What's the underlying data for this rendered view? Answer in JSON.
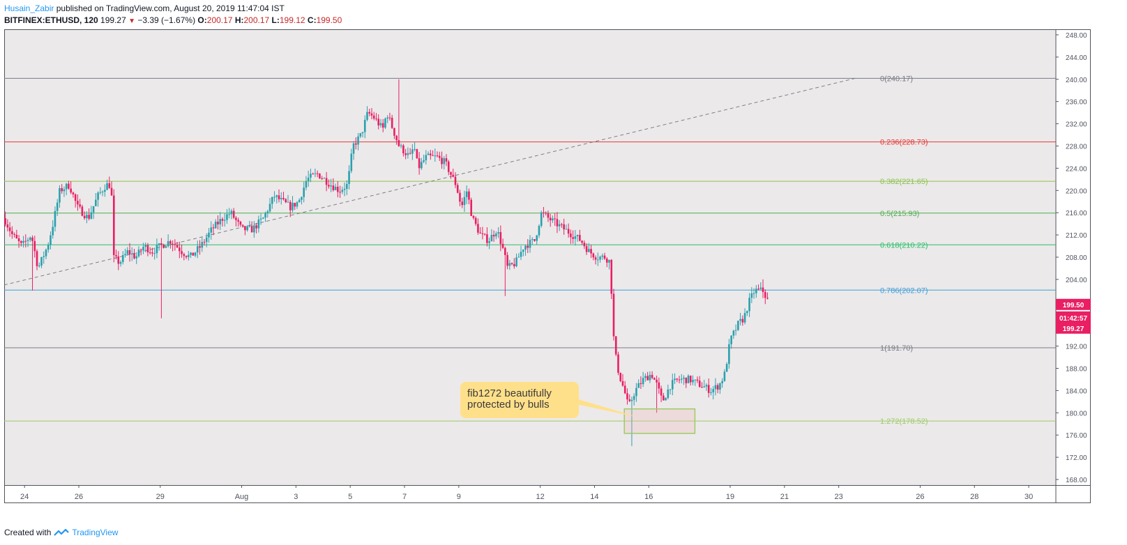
{
  "header": {
    "author": "Husain_Zabir",
    "published_text": "published on TradingView.com, August 20, 2019 11:47:04 IST",
    "symbol": "BITFINEX:ETHUSD, 120",
    "price": "199.27",
    "change": "−3.39 (−1.67%)",
    "o_label": "O:",
    "o_value": "200.17",
    "h_label": "H:",
    "h_value": "200.17",
    "l_label": "L:",
    "l_value": "199.12",
    "c_label": "C:",
    "c_value": "199.50"
  },
  "footer": {
    "created_with": "Created with",
    "brand": "TradingView"
  },
  "chart_data": {
    "type": "candlestick",
    "symbol": "BITFINEX:ETHUSD",
    "interval": "120",
    "y_axis": {
      "range": [
        167,
        249
      ],
      "ticks": [
        "168.00",
        "172.00",
        "176.00",
        "180.00",
        "184.00",
        "188.00",
        "192.00",
        "196.00",
        "200.00",
        "204.00",
        "208.00",
        "212.00",
        "216.00",
        "220.00",
        "224.00",
        "228.00",
        "232.00",
        "236.00",
        "240.00",
        "244.00",
        "248.00"
      ]
    },
    "x_axis": {
      "labels": [
        {
          "t": 0.5,
          "label": "24"
        },
        {
          "t": 2.5,
          "label": "26"
        },
        {
          "t": 5.5,
          "label": "29"
        },
        {
          "t": 8.5,
          "label": "Aug"
        },
        {
          "t": 10.5,
          "label": "3"
        },
        {
          "t": 12.5,
          "label": "5"
        },
        {
          "t": 14.5,
          "label": "7"
        },
        {
          "t": 16.5,
          "label": "9"
        },
        {
          "t": 19.5,
          "label": "12"
        },
        {
          "t": 21.5,
          "label": "14"
        },
        {
          "t": 23.5,
          "label": "16"
        },
        {
          "t": 26.5,
          "label": "19"
        },
        {
          "t": 28.5,
          "label": "21"
        },
        {
          "t": 30.5,
          "label": "23"
        },
        {
          "t": 33.5,
          "label": "26"
        },
        {
          "t": 35.5,
          "label": "28"
        },
        {
          "t": 37.5,
          "label": "30"
        }
      ],
      "range": [
        -0.25,
        38.5
      ]
    },
    "price_anchors": [
      {
        "t": -0.25,
        "p": 215
      },
      {
        "t": 0.05,
        "p": 212
      },
      {
        "t": 0.4,
        "p": 210
      },
      {
        "t": 0.75,
        "p": 212
      },
      {
        "t": 1.0,
        "p": 206
      },
      {
        "t": 1.35,
        "p": 210
      },
      {
        "t": 1.55,
        "p": 214
      },
      {
        "t": 1.8,
        "p": 220
      },
      {
        "t": 2.15,
        "p": 221
      },
      {
        "t": 2.45,
        "p": 217
      },
      {
        "t": 2.85,
        "p": 215
      },
      {
        "t": 3.2,
        "p": 219
      },
      {
        "t": 3.5,
        "p": 221
      },
      {
        "t": 3.7,
        "p": 221
      },
      {
        "t": 3.75,
        "p": 208
      },
      {
        "t": 4.0,
        "p": 207
      },
      {
        "t": 4.3,
        "p": 209
      },
      {
        "t": 4.6,
        "p": 208
      },
      {
        "t": 4.9,
        "p": 210
      },
      {
        "t": 5.2,
        "p": 209
      },
      {
        "t": 5.5,
        "p": 210
      },
      {
        "t": 5.9,
        "p": 211
      },
      {
        "t": 6.3,
        "p": 209
      },
      {
        "t": 6.6,
        "p": 208
      },
      {
        "t": 7.0,
        "p": 210
      },
      {
        "t": 7.4,
        "p": 213
      },
      {
        "t": 7.8,
        "p": 215
      },
      {
        "t": 8.1,
        "p": 216
      },
      {
        "t": 8.5,
        "p": 213
      },
      {
        "t": 8.9,
        "p": 213
      },
      {
        "t": 9.3,
        "p": 215
      },
      {
        "t": 9.7,
        "p": 219
      },
      {
        "t": 10.3,
        "p": 217
      },
      {
        "t": 10.6,
        "p": 218
      },
      {
        "t": 10.9,
        "p": 222
      },
      {
        "t": 11.3,
        "p": 223
      },
      {
        "t": 11.8,
        "p": 221
      },
      {
        "t": 12.1,
        "p": 220
      },
      {
        "t": 12.4,
        "p": 221
      },
      {
        "t": 12.6,
        "p": 228
      },
      {
        "t": 12.9,
        "p": 230
      },
      {
        "t": 13.15,
        "p": 234
      },
      {
        "t": 13.4,
        "p": 233
      },
      {
        "t": 13.7,
        "p": 231
      },
      {
        "t": 13.85,
        "p": 234
      },
      {
        "t": 14.0,
        "p": 232
      },
      {
        "t": 14.3,
        "p": 228
      },
      {
        "t": 14.5,
        "p": 227
      },
      {
        "t": 14.7,
        "p": 226
      },
      {
        "t": 14.85,
        "p": 228
      },
      {
        "t": 15.0,
        "p": 224
      },
      {
        "t": 15.3,
        "p": 226
      },
      {
        "t": 15.7,
        "p": 226
      },
      {
        "t": 16.0,
        "p": 225
      },
      {
        "t": 16.4,
        "p": 221
      },
      {
        "t": 16.6,
        "p": 217
      },
      {
        "t": 16.8,
        "p": 220
      },
      {
        "t": 17.0,
        "p": 215
      },
      {
        "t": 17.3,
        "p": 212
      },
      {
        "t": 17.6,
        "p": 211
      },
      {
        "t": 17.9,
        "p": 213
      },
      {
        "t": 18.1,
        "p": 210
      },
      {
        "t": 18.3,
        "p": 206
      },
      {
        "t": 18.6,
        "p": 207
      },
      {
        "t": 18.9,
        "p": 210
      },
      {
        "t": 19.3,
        "p": 211
      },
      {
        "t": 19.55,
        "p": 216
      },
      {
        "t": 19.8,
        "p": 215
      },
      {
        "t": 20.1,
        "p": 214
      },
      {
        "t": 20.4,
        "p": 213
      },
      {
        "t": 20.7,
        "p": 212
      },
      {
        "t": 21.0,
        "p": 211
      },
      {
        "t": 21.3,
        "p": 209
      },
      {
        "t": 21.6,
        "p": 208
      },
      {
        "t": 21.9,
        "p": 208
      },
      {
        "t": 22.1,
        "p": 207
      },
      {
        "t": 22.15,
        "p": 197
      },
      {
        "t": 22.25,
        "p": 191
      },
      {
        "t": 22.4,
        "p": 187
      },
      {
        "t": 22.6,
        "p": 184
      },
      {
        "t": 22.75,
        "p": 181
      },
      {
        "t": 23.0,
        "p": 184
      },
      {
        "t": 23.3,
        "p": 186
      },
      {
        "t": 23.6,
        "p": 187
      },
      {
        "t": 23.8,
        "p": 185
      },
      {
        "t": 24.0,
        "p": 182
      },
      {
        "t": 24.3,
        "p": 185
      },
      {
        "t": 24.6,
        "p": 186
      },
      {
        "t": 25.0,
        "p": 186
      },
      {
        "t": 25.4,
        "p": 185
      },
      {
        "t": 25.8,
        "p": 184
      },
      {
        "t": 26.1,
        "p": 185
      },
      {
        "t": 26.3,
        "p": 187
      },
      {
        "t": 26.5,
        "p": 193
      },
      {
        "t": 26.8,
        "p": 196
      },
      {
        "t": 27.0,
        "p": 197
      },
      {
        "t": 27.2,
        "p": 200
      },
      {
        "t": 27.4,
        "p": 202
      },
      {
        "t": 27.7,
        "p": 202
      },
      {
        "t": 27.95,
        "p": 199.5
      }
    ],
    "extremes": [
      {
        "t": 0.8,
        "p": 202
      },
      {
        "t": 5.55,
        "p": 197
      },
      {
        "t": 14.3,
        "p": 240
      },
      {
        "t": 18.2,
        "p": 201
      },
      {
        "t": 22.85,
        "p": 174
      },
      {
        "t": 23.8,
        "p": 180
      },
      {
        "t": 27.7,
        "p": 204
      }
    ],
    "fib_levels": [
      {
        "ratio": "0",
        "price": 240.17,
        "label": "0(240.17)",
        "color": "#787b86"
      },
      {
        "ratio": "0.236",
        "price": 228.73,
        "label": "0.236(228.73)",
        "color": "#e53935"
      },
      {
        "ratio": "0.382",
        "price": 221.65,
        "label": "0.382(221.65)",
        "color": "#8bc34a"
      },
      {
        "ratio": "0.5",
        "price": 215.93,
        "label": "0.5(215.93)",
        "color": "#4caf50"
      },
      {
        "ratio": "0.618",
        "price": 210.22,
        "label": "0.618(210.22)",
        "color": "#26c06b"
      },
      {
        "ratio": "0.786",
        "price": 202.07,
        "label": "0.786(202.07)",
        "color": "#3c9fd8"
      },
      {
        "ratio": "1",
        "price": 191.7,
        "label": "1(191.70)",
        "color": "#787b86"
      },
      {
        "ratio": "1.272",
        "price": 178.52,
        "label": "1.272(178.52)",
        "color": "#9ccc65"
      }
    ],
    "trendline": {
      "from": {
        "t": -0.25,
        "p": 203
      },
      "to": {
        "t": 31.1,
        "p": 240.17
      },
      "style": "dashed"
    },
    "annotation": {
      "text_lines": [
        "fib1272 beautifully",
        "protected by bulls"
      ],
      "box_price_range": [
        176.3,
        180.7
      ],
      "box_t_range": [
        22.6,
        25.2
      ]
    },
    "price_badges": {
      "last_close": "199.50",
      "countdown": "01:42:57",
      "last_price": "199.27"
    },
    "colors": {
      "up": "#26a69a",
      "down": "#ef5350",
      "down_candle": "#e91e63",
      "background": "#ece9ea",
      "grid": "none"
    }
  }
}
